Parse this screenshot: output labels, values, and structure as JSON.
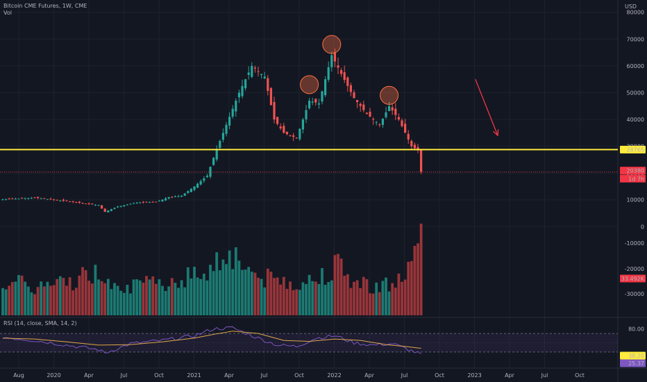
{
  "header": {
    "title": "Bitcoin CME Futures, 1W, CME",
    "vol_label": "Vol",
    "rsi_label": "RSI (14, close, SMA, 14, 2)",
    "currency": "USD"
  },
  "chart_data": {
    "type": "candlestick",
    "price_axis": {
      "ticks": [
        0,
        10000,
        20000,
        30000,
        40000,
        50000,
        60000,
        70000,
        80000
      ],
      "range": [
        -2000,
        82000
      ]
    },
    "volume_axis_ticks": [
      "-10000",
      "-20000",
      "-30000"
    ],
    "rsi_axis": {
      "ticks": [
        "80.00"
      ],
      "range": [
        0,
        100
      ]
    },
    "time_axis": [
      "Aug",
      "2020",
      "Apr",
      "Jul",
      "Oct",
      "2021",
      "Apr",
      "Jul",
      "Oct",
      "2022",
      "Apr",
      "Jul",
      "Oct",
      "2023",
      "Apr",
      "Jul",
      "Oct"
    ],
    "horizontal_level": {
      "value": 28765,
      "label": "28765",
      "color": "#ffeb3b"
    },
    "last_price": {
      "value": 20380,
      "label": "20380",
      "countdown": "1d 7h",
      "color": "#f23645"
    },
    "volume_last_label": "33.492K",
    "rsi_labels": {
      "sma": "38.20",
      "rsi": "25.37"
    },
    "colors": {
      "up": "#26a69a",
      "down": "#ef5350",
      "vol_up": "#1c7a72",
      "vol_down": "#98353a",
      "rsi": "#7e57c2",
      "rsi_sma": "#e0a84a",
      "circle": "#ff7043",
      "arrow": "#f23645"
    },
    "annotations": [
      {
        "type": "circle",
        "date_index": 96,
        "price": 53000
      },
      {
        "type": "circle",
        "date_index": 103,
        "price": 68000
      },
      {
        "type": "circle",
        "date_index": 121,
        "price": 49000
      },
      {
        "type": "arrow",
        "from_index": 148,
        "from_price": 55000,
        "to_index": 155,
        "to_price": 34000
      }
    ],
    "price_keypoints": [
      [
        0,
        10200
      ],
      [
        10,
        10800
      ],
      [
        20,
        9500
      ],
      [
        30,
        8000
      ],
      [
        32,
        5500
      ],
      [
        36,
        7500
      ],
      [
        42,
        9000
      ],
      [
        48,
        9200
      ],
      [
        52,
        11000
      ],
      [
        56,
        11500
      ],
      [
        60,
        15000
      ],
      [
        64,
        19000
      ],
      [
        67,
        29000
      ],
      [
        70,
        38000
      ],
      [
        74,
        50000
      ],
      [
        78,
        60000
      ],
      [
        82,
        56000
      ],
      [
        85,
        40000
      ],
      [
        88,
        35000
      ],
      [
        92,
        33000
      ],
      [
        96,
        47000
      ],
      [
        99,
        46000
      ],
      [
        103,
        64000
      ],
      [
        106,
        57000
      ],
      [
        110,
        48000
      ],
      [
        114,
        42000
      ],
      [
        118,
        38000
      ],
      [
        121,
        45000
      ],
      [
        124,
        40000
      ],
      [
        128,
        30000
      ],
      [
        130,
        28500
      ],
      [
        131,
        20380
      ]
    ],
    "vol_keypoints": [
      [
        0,
        15
      ],
      [
        10,
        12
      ],
      [
        20,
        14
      ],
      [
        28,
        18
      ],
      [
        32,
        17
      ],
      [
        40,
        12
      ],
      [
        50,
        14
      ],
      [
        60,
        17
      ],
      [
        66,
        21
      ],
      [
        70,
        28
      ],
      [
        74,
        24
      ],
      [
        80,
        16
      ],
      [
        86,
        15
      ],
      [
        92,
        14
      ],
      [
        98,
        15
      ],
      [
        104,
        22
      ],
      [
        110,
        14
      ],
      [
        116,
        13
      ],
      [
        122,
        13
      ],
      [
        126,
        17
      ],
      [
        131,
        30
      ]
    ],
    "rsi_keypoints": [
      [
        0,
        62
      ],
      [
        10,
        55
      ],
      [
        20,
        45
      ],
      [
        30,
        35
      ],
      [
        32,
        28
      ],
      [
        40,
        48
      ],
      [
        50,
        55
      ],
      [
        60,
        65
      ],
      [
        66,
        80
      ],
      [
        72,
        82
      ],
      [
        80,
        60
      ],
      [
        86,
        45
      ],
      [
        92,
        42
      ],
      [
        98,
        60
      ],
      [
        104,
        65
      ],
      [
        110,
        50
      ],
      [
        116,
        45
      ],
      [
        122,
        48
      ],
      [
        126,
        38
      ],
      [
        131,
        25
      ]
    ],
    "rsi_sma_keypoints": [
      [
        0,
        60
      ],
      [
        10,
        58
      ],
      [
        20,
        52
      ],
      [
        30,
        45
      ],
      [
        40,
        46
      ],
      [
        50,
        52
      ],
      [
        60,
        60
      ],
      [
        66,
        68
      ],
      [
        72,
        75
      ],
      [
        80,
        70
      ],
      [
        88,
        55
      ],
      [
        96,
        53
      ],
      [
        104,
        58
      ],
      [
        112,
        55
      ],
      [
        120,
        46
      ],
      [
        126,
        42
      ],
      [
        131,
        38
      ]
    ]
  }
}
